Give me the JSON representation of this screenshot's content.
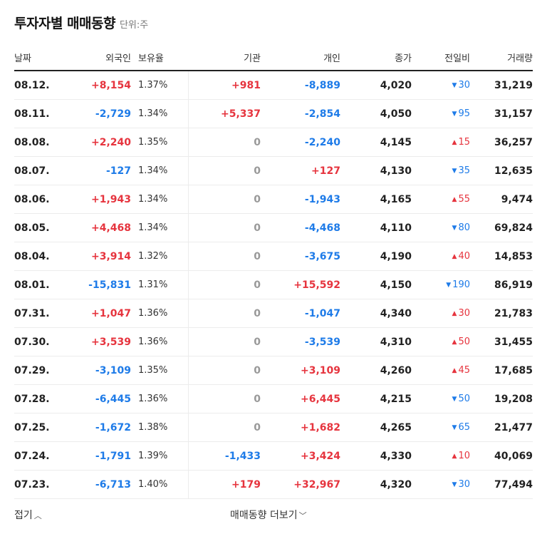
{
  "header": {
    "title": "투자자별 매매동향",
    "unit": "단위:주"
  },
  "columns": [
    "날짜",
    "외국인",
    "보유율",
    "기관",
    "개인",
    "종가",
    "전일비",
    "거래량"
  ],
  "rows": [
    {
      "date": "08.12.",
      "foreign": "+8,154",
      "ratio": "1.37%",
      "inst": "+981",
      "indiv": "-8,889",
      "close": "4,020",
      "change": "30",
      "dir": "down",
      "volume": "31,219"
    },
    {
      "date": "08.11.",
      "foreign": "-2,729",
      "ratio": "1.34%",
      "inst": "+5,337",
      "indiv": "-2,854",
      "close": "4,050",
      "change": "95",
      "dir": "down",
      "volume": "31,157"
    },
    {
      "date": "08.08.",
      "foreign": "+2,240",
      "ratio": "1.35%",
      "inst": "0",
      "indiv": "-2,240",
      "close": "4,145",
      "change": "15",
      "dir": "up",
      "volume": "36,257"
    },
    {
      "date": "08.07.",
      "foreign": "-127",
      "ratio": "1.34%",
      "inst": "0",
      "indiv": "+127",
      "close": "4,130",
      "change": "35",
      "dir": "down",
      "volume": "12,635"
    },
    {
      "date": "08.06.",
      "foreign": "+1,943",
      "ratio": "1.34%",
      "inst": "0",
      "indiv": "-1,943",
      "close": "4,165",
      "change": "55",
      "dir": "up",
      "volume": "9,474"
    },
    {
      "date": "08.05.",
      "foreign": "+4,468",
      "ratio": "1.34%",
      "inst": "0",
      "indiv": "-4,468",
      "close": "4,110",
      "change": "80",
      "dir": "down",
      "volume": "69,824"
    },
    {
      "date": "08.04.",
      "foreign": "+3,914",
      "ratio": "1.32%",
      "inst": "0",
      "indiv": "-3,675",
      "close": "4,190",
      "change": "40",
      "dir": "up",
      "volume": "14,853"
    },
    {
      "date": "08.01.",
      "foreign": "-15,831",
      "ratio": "1.31%",
      "inst": "0",
      "indiv": "+15,592",
      "close": "4,150",
      "change": "190",
      "dir": "down",
      "volume": "86,919"
    },
    {
      "date": "07.31.",
      "foreign": "+1,047",
      "ratio": "1.36%",
      "inst": "0",
      "indiv": "-1,047",
      "close": "4,340",
      "change": "30",
      "dir": "up",
      "volume": "21,783"
    },
    {
      "date": "07.30.",
      "foreign": "+3,539",
      "ratio": "1.36%",
      "inst": "0",
      "indiv": "-3,539",
      "close": "4,310",
      "change": "50",
      "dir": "up",
      "volume": "31,455"
    },
    {
      "date": "07.29.",
      "foreign": "-3,109",
      "ratio": "1.35%",
      "inst": "0",
      "indiv": "+3,109",
      "close": "4,260",
      "change": "45",
      "dir": "up",
      "volume": "17,685"
    },
    {
      "date": "07.28.",
      "foreign": "-6,445",
      "ratio": "1.36%",
      "inst": "0",
      "indiv": "+6,445",
      "close": "4,215",
      "change": "50",
      "dir": "down",
      "volume": "19,208"
    },
    {
      "date": "07.25.",
      "foreign": "-1,672",
      "ratio": "1.38%",
      "inst": "0",
      "indiv": "+1,682",
      "close": "4,265",
      "change": "65",
      "dir": "down",
      "volume": "21,477"
    },
    {
      "date": "07.24.",
      "foreign": "-1,791",
      "ratio": "1.39%",
      "inst": "-1,433",
      "indiv": "+3,424",
      "close": "4,330",
      "change": "10",
      "dir": "up",
      "volume": "40,069"
    },
    {
      "date": "07.23.",
      "foreign": "-6,713",
      "ratio": "1.40%",
      "inst": "+179",
      "indiv": "+32,967",
      "close": "4,320",
      "change": "30",
      "dir": "down",
      "volume": "77,494"
    }
  ],
  "footer": {
    "fold_label": "접기",
    "more_label": "매매동향 더보기"
  },
  "icons": {
    "up_triangle": "▲",
    "down_triangle": "▼",
    "chevron_up": "︿",
    "chevron_down": "﹀"
  },
  "colors": {
    "positive": "#e6343e",
    "negative": "#1e7be8",
    "zero": "#999999"
  }
}
